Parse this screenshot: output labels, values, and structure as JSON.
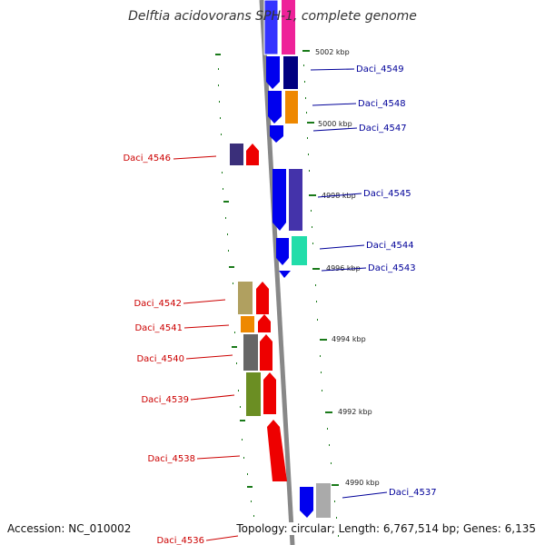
{
  "title": "Delftia acidovorans SPH-1, complete genome",
  "footer": {
    "accession": "Accession: NC_010002",
    "topology": "Topology: circular; Length: 6,767,514 bp; Genes: 6,135"
  },
  "colors": {
    "backbone": "#888888",
    "ruler": "#1a7a1a",
    "left_label": "#cc0000",
    "right_label": "#000099"
  },
  "ticks": [
    "5002 kbp",
    "5000 kbp",
    "4998 kbp",
    "4996 kbp",
    "4994 kbp",
    "4992 kbp",
    "4990 kbp"
  ],
  "genes_left": [
    "Daci_4546",
    "Daci_4542",
    "Daci_4541",
    "Daci_4540",
    "Daci_4539",
    "Daci_4538",
    "Daci_4536"
  ],
  "genes_right": [
    "Daci_4549",
    "Daci_4548",
    "Daci_4547",
    "Daci_4545",
    "Daci_4544",
    "Daci_4543",
    "Daci_4537"
  ]
}
